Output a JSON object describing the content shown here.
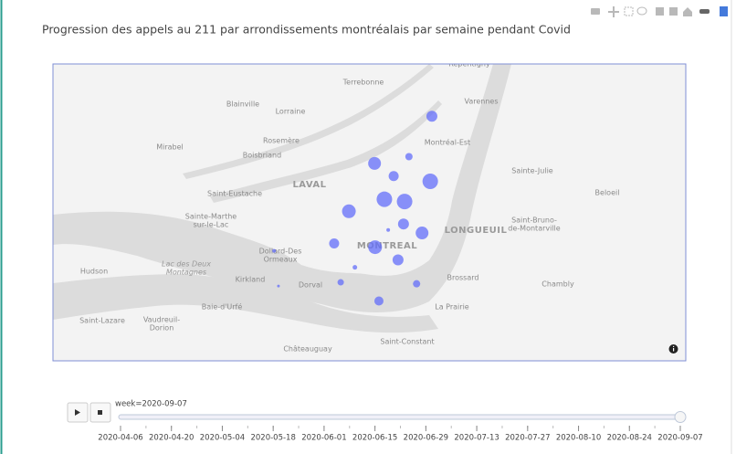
{
  "chart_data": {
    "type": "scatter_map",
    "title": "Progression des appels au 211 par arrondissements montréalais par semaine pendant Covid",
    "color": "#636efa",
    "xlim": [
      -74.215,
      -73.056
    ],
    "ylim": [
      45.345,
      45.742
    ],
    "x": [
      -73.521,
      -73.563,
      -73.626,
      -73.591,
      -73.524,
      -73.608,
      -73.571,
      -73.673,
      -73.573,
      -73.601,
      -73.539,
      -73.7,
      -73.625,
      -73.583,
      -73.662,
      -73.688,
      -73.549,
      -73.618,
      -73.81,
      -73.802
    ],
    "values": [
      45.672,
      45.618,
      45.609,
      45.592,
      45.585,
      45.561,
      45.558,
      45.545,
      45.528,
      45.52,
      45.516,
      45.502,
      45.497,
      45.48,
      45.47,
      45.45,
      45.448,
      45.425,
      45.492,
      45.445
    ],
    "sizes": [
      6,
      4,
      7,
      5.5,
      8.5,
      8.5,
      8.5,
      7.5,
      6,
      2,
      7,
      5.5,
      7.5,
      6,
      2.5,
      3.5,
      4,
      5,
      2,
      1.5
    ],
    "places": [
      "Repentigny",
      "Terrebonne",
      "Varennes",
      "Blainville",
      "Lorraine",
      "Mirabel",
      "Rosemère",
      "Boisbriand",
      "Montréal-Est",
      "Sainte-Julie",
      "LAVAL",
      "Saint-Eustache",
      "Beloeil",
      [
        "Sainte-Marthe",
        "sur-le-Lac"
      ],
      "LONGUEUIL",
      [
        "Saint-Bruno-",
        "de-Montarville"
      ],
      "MONTREAL",
      [
        "Dollard-Des",
        "Ormeaux"
      ],
      "Hudson",
      [
        "Lac des Deux",
        "Montagnes"
      ],
      "Kirkland",
      "Brossard",
      "Dorval",
      "Chambly",
      "Baie-d'Urfé",
      "La Prairie",
      "Saint-Lazare",
      [
        "Vaudreuil-",
        "Dorion"
      ],
      "Saint-Constant",
      "Châteauguay"
    ],
    "slider": {
      "current_label": "week=2020-09-07",
      "ticks": [
        "2020-04-06",
        "2020-04-20",
        "2020-05-04",
        "2020-05-18",
        "2020-06-01",
        "2020-06-15",
        "2020-06-29",
        "2020-07-13",
        "2020-07-27",
        "2020-08-10",
        "2020-08-24",
        "2020-09-07"
      ]
    }
  }
}
